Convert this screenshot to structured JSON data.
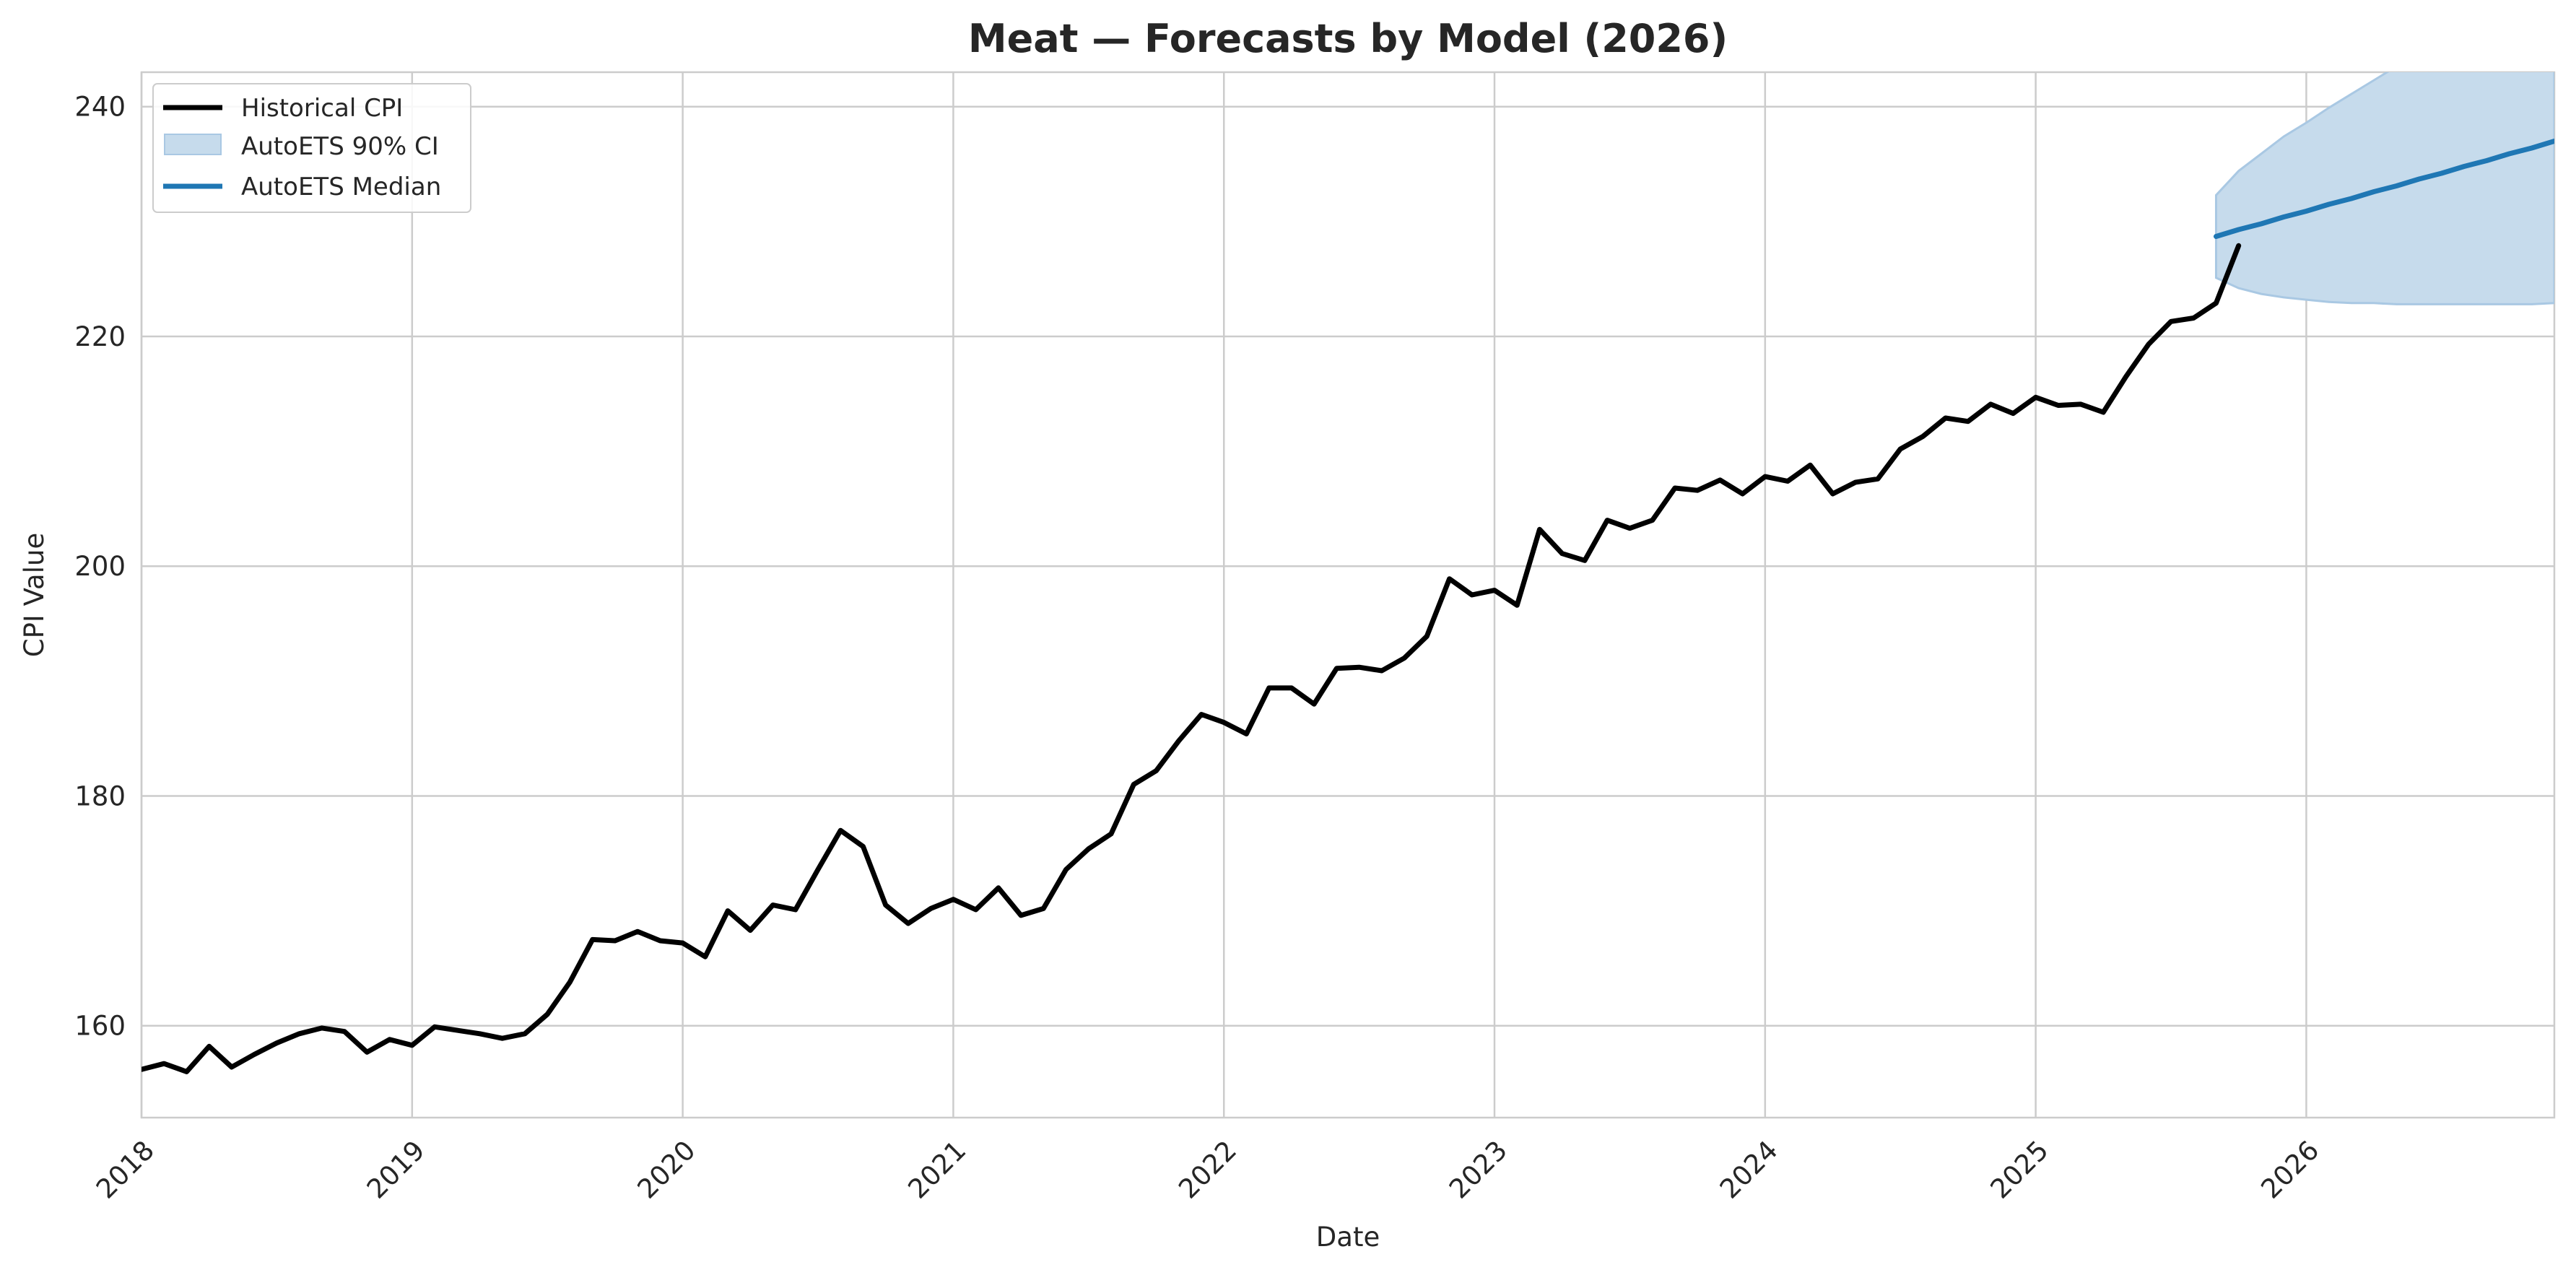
{
  "chart_data": {
    "type": "line",
    "title": "Meat — Forecasts by Model (2026)",
    "xlabel": "Date",
    "ylabel": "CPI Value",
    "xlim": [
      "2018-01",
      "2026-12"
    ],
    "ylim": [
      152,
      243
    ],
    "x_ticks": [
      "2018",
      "2019",
      "2020",
      "2021",
      "2022",
      "2023",
      "2024",
      "2025",
      "2026"
    ],
    "y_ticks": [
      160,
      180,
      200,
      220,
      240
    ],
    "grid": true,
    "legend_position": "upper-left",
    "legend": [
      "Historical CPI",
      "AutoETS 90% CI",
      "AutoETS Median"
    ],
    "colors": {
      "historical": "#000000",
      "median": "#1f77b4",
      "ci_fill": "#c6dbec",
      "ci_edge": "#a9c8e3",
      "grid": "#cccccc"
    },
    "series": [
      {
        "name": "Historical CPI",
        "start": "2018-01",
        "frequency": "monthly",
        "values": [
          156.2,
          156.7,
          156.0,
          158.2,
          156.4,
          157.5,
          158.5,
          159.3,
          159.8,
          159.5,
          157.7,
          158.8,
          158.3,
          159.9,
          159.6,
          159.3,
          158.9,
          159.3,
          161.0,
          163.8,
          167.5,
          167.4,
          168.2,
          167.4,
          167.2,
          166.0,
          170.0,
          168.3,
          170.5,
          170.1,
          173.6,
          177.0,
          175.6,
          170.5,
          168.9,
          170.2,
          171.0,
          170.1,
          172.0,
          169.6,
          170.2,
          173.6,
          175.4,
          176.7,
          181.0,
          182.2,
          184.8,
          187.1,
          186.4,
          185.4,
          189.4,
          189.4,
          188.0,
          191.1,
          191.2,
          190.9,
          192.0,
          193.9,
          198.9,
          197.5,
          197.9,
          196.6,
          203.2,
          201.1,
          200.5,
          204.0,
          203.3,
          204.0,
          206.8,
          206.6,
          207.5,
          206.3,
          207.8,
          207.4,
          208.8,
          206.3,
          207.3,
          207.6,
          210.2,
          211.3,
          212.9,
          212.6,
          214.1,
          213.3,
          214.7,
          214.0,
          214.1,
          213.4,
          216.5,
          219.3,
          221.3,
          221.6,
          222.9,
          227.9
        ]
      },
      {
        "name": "AutoETS Median",
        "start": "2025-09",
        "frequency": "monthly",
        "values": [
          228.7,
          229.3,
          229.8,
          230.4,
          230.9,
          231.5,
          232.0,
          232.6,
          233.1,
          233.7,
          234.2,
          234.8,
          235.3,
          235.9,
          236.4,
          237.0
        ]
      },
      {
        "name": "AutoETS 90% CI",
        "start": "2025-09",
        "frequency": "monthly",
        "lower": [
          225.1,
          224.2,
          223.7,
          223.4,
          223.2,
          223.0,
          222.9,
          222.9,
          222.8,
          222.8,
          222.8,
          222.8,
          222.8,
          222.8,
          222.8,
          222.9
        ],
        "upper": [
          232.3,
          234.4,
          235.9,
          237.4,
          238.6,
          239.9,
          241.1,
          242.3,
          243.5,
          244.6,
          245.7,
          246.8,
          247.8,
          248.8,
          249.8,
          250.8
        ]
      }
    ]
  }
}
